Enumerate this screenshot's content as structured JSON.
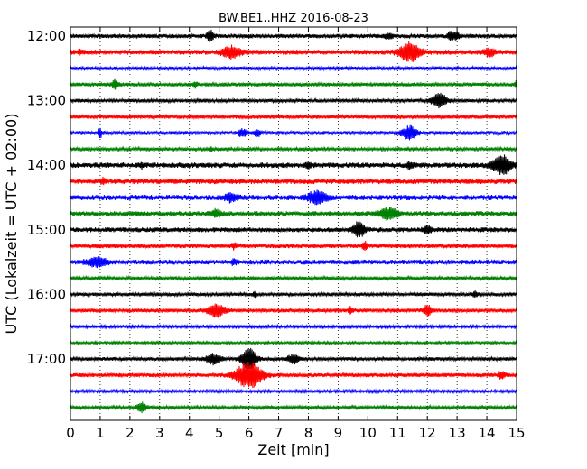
{
  "chart_data": {
    "type": "line",
    "title": "BW.BE1..HHZ 2016-08-23",
    "xlabel": "Zeit  [min]",
    "ylabel": "UTC (Lokalzeit = UTC + 02:00)",
    "xlim": [
      0,
      15
    ],
    "x_ticks": [
      0,
      1,
      2,
      3,
      4,
      5,
      6,
      7,
      8,
      9,
      10,
      11,
      12,
      13,
      14,
      15
    ],
    "x_tick_labels": [
      "0",
      "1",
      "2",
      "3",
      "4",
      "5",
      "6",
      "7",
      "8",
      "9",
      "10",
      "11",
      "12",
      "13",
      "14",
      "15"
    ],
    "grid": "vertical-dotted",
    "trace_interval_minutes": 15,
    "y_tick_labels": [
      "12:00",
      "13:00",
      "14:00",
      "15:00",
      "16:00",
      "17:00"
    ],
    "colors": [
      "#000000",
      "#ff0000",
      "#0000ff",
      "#008000"
    ],
    "traces": [
      {
        "start": "12:00",
        "color": "#000000",
        "noise": 1.5,
        "events": [
          {
            "t": 4.7,
            "amp": 6,
            "dur": 0.12
          },
          {
            "t": 10.7,
            "amp": 3,
            "dur": 0.15
          },
          {
            "t": 12.8,
            "amp": 4,
            "dur": 0.12
          },
          {
            "t": 13.0,
            "amp": 3,
            "dur": 0.1
          }
        ]
      },
      {
        "start": "12:15",
        "color": "#ff0000",
        "noise": 1.8,
        "events": [
          {
            "t": 5.4,
            "amp": 6,
            "dur": 0.3
          },
          {
            "t": 11.4,
            "amp": 10,
            "dur": 0.35
          },
          {
            "t": 14.1,
            "amp": 4,
            "dur": 0.2
          },
          {
            "t": 0.3,
            "amp": 3,
            "dur": 0.05
          }
        ]
      },
      {
        "start": "12:30",
        "color": "#0000ff",
        "noise": 1.3,
        "events": []
      },
      {
        "start": "12:45",
        "color": "#008000",
        "noise": 1.4,
        "events": [
          {
            "t": 1.5,
            "amp": 5,
            "dur": 0.1
          },
          {
            "t": 4.2,
            "amp": 3,
            "dur": 0.08
          },
          {
            "t": 15.0,
            "amp": 5,
            "dur": 0.05
          }
        ]
      },
      {
        "start": "13:00",
        "color": "#000000",
        "noise": 1.3,
        "events": [
          {
            "t": 12.4,
            "amp": 8,
            "dur": 0.25
          }
        ]
      },
      {
        "start": "13:15",
        "color": "#ff0000",
        "noise": 1.4,
        "events": []
      },
      {
        "start": "13:30",
        "color": "#0000ff",
        "noise": 1.5,
        "events": [
          {
            "t": 1.0,
            "amp": 5,
            "dur": 0.06
          },
          {
            "t": 5.8,
            "amp": 4,
            "dur": 0.15
          },
          {
            "t": 6.3,
            "amp": 4,
            "dur": 0.1
          },
          {
            "t": 11.4,
            "amp": 7,
            "dur": 0.25
          }
        ]
      },
      {
        "start": "13:45",
        "color": "#008000",
        "noise": 1.2,
        "events": [
          {
            "t": 4.7,
            "amp": 3,
            "dur": 0.06
          }
        ]
      },
      {
        "start": "14:00",
        "color": "#000000",
        "noise": 2.0,
        "events": [
          {
            "t": 2.4,
            "amp": 3,
            "dur": 0.06
          },
          {
            "t": 8.0,
            "amp": 3,
            "dur": 0.1
          },
          {
            "t": 11.4,
            "amp": 3,
            "dur": 0.1
          },
          {
            "t": 14.5,
            "amp": 10,
            "dur": 0.3
          }
        ]
      },
      {
        "start": "14:15",
        "color": "#ff0000",
        "noise": 2.0,
        "events": [
          {
            "t": 1.1,
            "amp": 4,
            "dur": 0.06
          }
        ]
      },
      {
        "start": "14:30",
        "color": "#0000ff",
        "noise": 2.0,
        "events": [
          {
            "t": 5.4,
            "amp": 4,
            "dur": 0.2
          },
          {
            "t": 8.3,
            "amp": 7,
            "dur": 0.3
          }
        ]
      },
      {
        "start": "14:45",
        "color": "#008000",
        "noise": 1.8,
        "events": [
          {
            "t": 4.9,
            "amp": 4,
            "dur": 0.15
          },
          {
            "t": 10.7,
            "amp": 6,
            "dur": 0.3
          }
        ]
      },
      {
        "start": "15:00",
        "color": "#000000",
        "noise": 1.8,
        "events": [
          {
            "t": 9.7,
            "amp": 8,
            "dur": 0.2
          },
          {
            "t": 12.0,
            "amp": 4,
            "dur": 0.15
          }
        ]
      },
      {
        "start": "15:15",
        "color": "#ff0000",
        "noise": 1.6,
        "events": [
          {
            "t": 5.5,
            "amp": 3,
            "dur": 0.08
          },
          {
            "t": 9.9,
            "amp": 5,
            "dur": 0.08
          }
        ]
      },
      {
        "start": "15:30",
        "color": "#0000ff",
        "noise": 1.8,
        "events": [
          {
            "t": 0.9,
            "amp": 5,
            "dur": 0.35
          },
          {
            "t": 5.5,
            "amp": 3,
            "dur": 0.1
          }
        ]
      },
      {
        "start": "15:45",
        "color": "#008000",
        "noise": 1.3,
        "events": []
      },
      {
        "start": "16:00",
        "color": "#000000",
        "noise": 1.3,
        "events": [
          {
            "t": 6.2,
            "amp": 3,
            "dur": 0.06
          },
          {
            "t": 13.6,
            "amp": 3,
            "dur": 0.08
          }
        ]
      },
      {
        "start": "16:15",
        "color": "#ff0000",
        "noise": 1.4,
        "events": [
          {
            "t": 4.9,
            "amp": 7,
            "dur": 0.3
          },
          {
            "t": 9.4,
            "amp": 4,
            "dur": 0.06
          },
          {
            "t": 12.0,
            "amp": 6,
            "dur": 0.15
          }
        ]
      },
      {
        "start": "16:30",
        "color": "#0000ff",
        "noise": 1.0,
        "events": []
      },
      {
        "start": "16:45",
        "color": "#008000",
        "noise": 0.9,
        "events": []
      },
      {
        "start": "17:00",
        "color": "#000000",
        "noise": 1.3,
        "events": [
          {
            "t": 4.8,
            "amp": 6,
            "dur": 0.25
          },
          {
            "t": 6.0,
            "amp": 12,
            "dur": 0.25
          },
          {
            "t": 7.5,
            "amp": 5,
            "dur": 0.2
          }
        ]
      },
      {
        "start": "17:15",
        "color": "#ff0000",
        "noise": 1.5,
        "events": [
          {
            "t": 6.0,
            "amp": 14,
            "dur": 0.45
          },
          {
            "t": 14.5,
            "amp": 4,
            "dur": 0.12
          }
        ]
      },
      {
        "start": "17:30",
        "color": "#0000ff",
        "noise": 1.0,
        "events": []
      },
      {
        "start": "17:45",
        "color": "#008000",
        "noise": 1.2,
        "events": [
          {
            "t": 2.4,
            "amp": 5,
            "dur": 0.15
          }
        ]
      }
    ]
  }
}
